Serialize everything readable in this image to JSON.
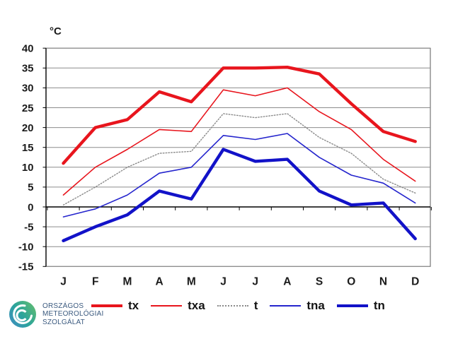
{
  "chart_data": {
    "type": "line",
    "y_unit": "°C",
    "categories": [
      "J",
      "F",
      "M",
      "A",
      "M",
      "J",
      "J",
      "A",
      "S",
      "O",
      "N",
      "D"
    ],
    "y_ticks": [
      40,
      35,
      30,
      25,
      20,
      15,
      10,
      5,
      0,
      -5,
      -10,
      -15
    ],
    "ylim": [
      -15,
      40
    ],
    "grid": true,
    "legend_position": "bottom",
    "series": [
      {
        "name": "tx",
        "color": "#e8151d",
        "width": 4.4,
        "style": "solid",
        "values": [
          11,
          20,
          22,
          29,
          26.5,
          35,
          35,
          35.2,
          33.5,
          26,
          19,
          16.5
        ]
      },
      {
        "name": "txa",
        "color": "#e8151d",
        "width": 1.6,
        "style": "solid",
        "values": [
          3,
          10,
          14.5,
          19.5,
          19,
          29.5,
          28,
          30,
          24,
          19.5,
          12,
          6.5
        ]
      },
      {
        "name": "t",
        "color": "#8a8a8a",
        "width": 1.4,
        "style": "dotted",
        "values": [
          0.5,
          5,
          10,
          13.5,
          14,
          23.5,
          22.5,
          23.5,
          17.5,
          13.5,
          7,
          3.5
        ]
      },
      {
        "name": "tna",
        "color": "#2525cd",
        "width": 1.6,
        "style": "solid",
        "values": [
          -2.5,
          -0.5,
          3,
          8.5,
          10,
          18,
          17,
          18.5,
          12.5,
          8,
          6,
          1
        ]
      },
      {
        "name": "tn",
        "color": "#1212c8",
        "width": 4.4,
        "style": "solid",
        "values": [
          -8.5,
          -5,
          -2,
          4,
          2,
          14.5,
          11.5,
          12,
          4,
          0.5,
          1,
          -8
        ]
      }
    ]
  },
  "logo": {
    "lines": [
      "ORSZÁGOS",
      "METEOROLÓGIAI",
      "SZOLGÁLAT"
    ]
  }
}
